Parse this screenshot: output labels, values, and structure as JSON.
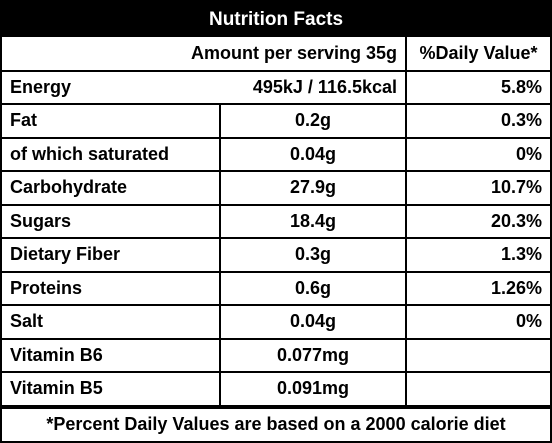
{
  "title": "Nutrition Facts",
  "header": {
    "amount_label": "Amount per serving 35g",
    "daily_value_label": "%Daily Value*"
  },
  "energy": {
    "name": "Energy",
    "amount": "495kJ / 116.5kcal",
    "dv": "5.8%"
  },
  "rows": [
    {
      "name": "Fat",
      "amount": "0.2g",
      "dv": "0.3%"
    },
    {
      "name": "of which saturated",
      "amount": "0.04g",
      "dv": "0%"
    },
    {
      "name": "Carbohydrate",
      "amount": "27.9g",
      "dv": "10.7%"
    },
    {
      "name": "Sugars",
      "amount": "18.4g",
      "dv": "20.3%"
    },
    {
      "name": "Dietary Fiber",
      "amount": "0.3g",
      "dv": "1.3%"
    },
    {
      "name": "Proteins",
      "amount": "0.6g",
      "dv": "1.26%"
    },
    {
      "name": "Salt",
      "amount": "0.04g",
      "dv": "0%"
    },
    {
      "name": "Vitamin B6",
      "amount": "0.077mg",
      "dv": ""
    },
    {
      "name": "Vitamin B5",
      "amount": "0.091mg",
      "dv": ""
    }
  ],
  "footnote": "*Percent Daily Values are based on a 2000 calorie diet"
}
